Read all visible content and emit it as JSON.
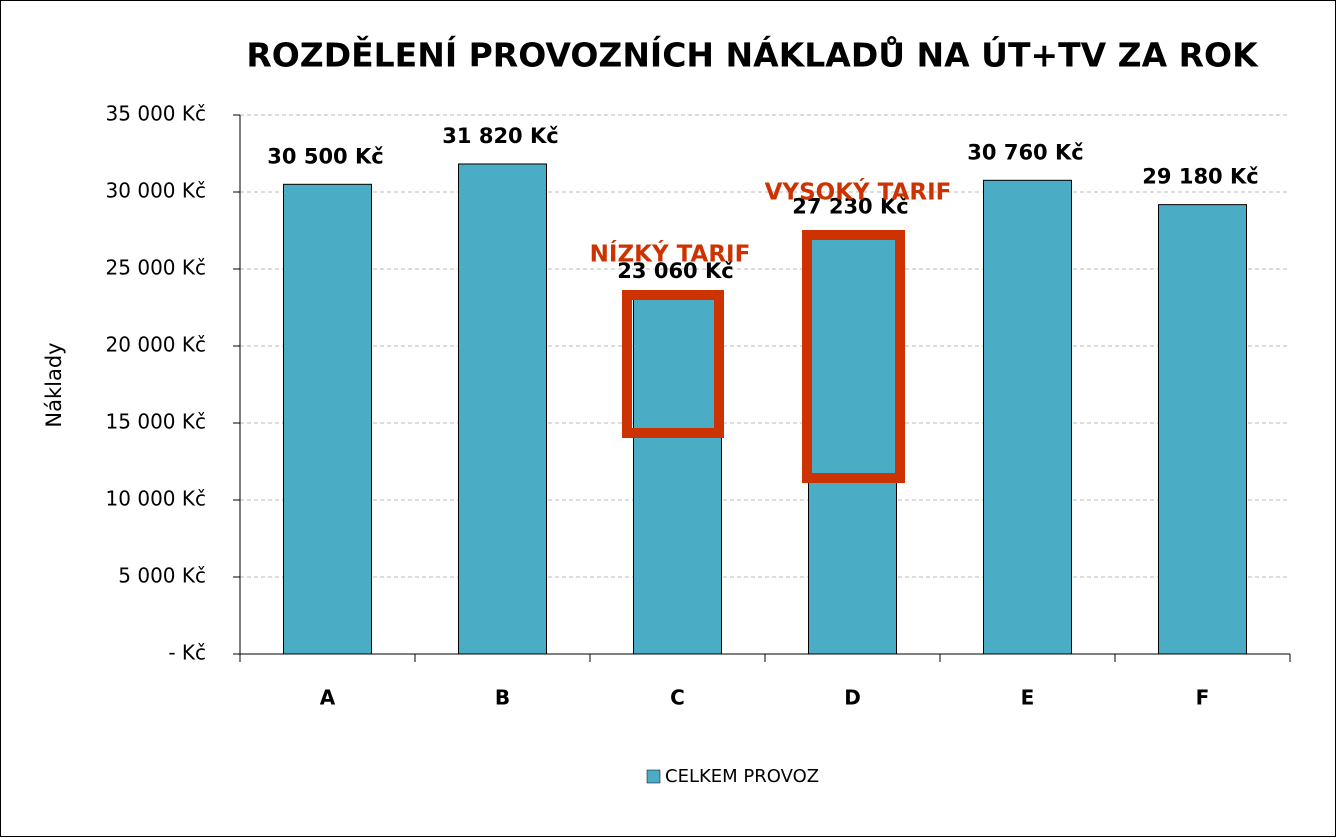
{
  "chart_data": {
    "type": "bar",
    "title": "ROZDĚLENÍ PROVOZNÍCH NÁKLADŮ NA ÚT+TV ZA ROK",
    "y_label": "Náklady",
    "categories": [
      "A",
      "B",
      "C",
      "D",
      "E",
      "F"
    ],
    "series": [
      {
        "name": "CELKEM PROVOZ",
        "color": "#4bacc6",
        "values": [
          30500,
          31820,
          23060,
          27230,
          30760,
          29180
        ],
        "value_labels": [
          "30 500 Kč",
          "31 820 Kč",
          "23 060 Kč",
          "27 230 Kč",
          "30 760 Kč",
          "29 180 Kč"
        ]
      }
    ],
    "ylim": [
      0,
      35000
    ],
    "yticks": [
      {
        "value": 0,
        "label": "- Kč"
      },
      {
        "value": 5000,
        "label": "5 000 Kč"
      },
      {
        "value": 10000,
        "label": "10 000 Kč"
      },
      {
        "value": 15000,
        "label": "15 000 Kč"
      },
      {
        "value": 20000,
        "label": "20 000 Kč"
      },
      {
        "value": 25000,
        "label": "25 000 Kč"
      },
      {
        "value": 30000,
        "label": "30 000 Kč"
      },
      {
        "value": 35000,
        "label": "35 000 Kč"
      }
    ],
    "grid": true,
    "legend": "bottom",
    "annotations": [
      {
        "text": "NÍZKÝ TARIF",
        "color": "#cc3300"
      },
      {
        "text": "VYSOKÝ TARIF",
        "color": "#cc3300"
      }
    ]
  }
}
